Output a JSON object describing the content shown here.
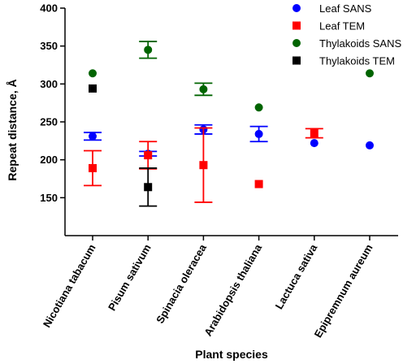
{
  "chart_data": {
    "type": "scatter",
    "title": "",
    "xlabel": "Plant species",
    "ylabel": "Repeat distance, Å",
    "ylim": [
      100,
      400
    ],
    "yticks": [
      150,
      200,
      250,
      300,
      350,
      400
    ],
    "categories": [
      "Nicotiana tabacum",
      "Pisum sativum",
      "Spinacia oleracea",
      "Arabidopsis thaliana",
      "Lactuca sativa",
      "Epipremnum aureum"
    ],
    "legend_position": "top-right",
    "grid": false,
    "series": [
      {
        "name": "Leaf SANS",
        "color": "#0000ff",
        "marker": "circle",
        "values": [
          231,
          208,
          240,
          234,
          222,
          219
        ],
        "error": [
          5,
          3,
          6,
          10,
          null,
          null
        ]
      },
      {
        "name": "Leaf TEM",
        "color": "#ff0000",
        "marker": "square",
        "values": [
          189,
          206,
          193,
          168,
          235,
          null
        ],
        "error": [
          23,
          18,
          49,
          null,
          6,
          null
        ]
      },
      {
        "name": "Thylakoids SANS",
        "color": "#006400",
        "marker": "circle",
        "values": [
          314,
          345,
          293,
          269,
          null,
          314
        ],
        "error": [
          null,
          11,
          8,
          null,
          null,
          null
        ]
      },
      {
        "name": "Thylakoids TEM",
        "color": "#000000",
        "marker": "square",
        "values": [
          294,
          164,
          null,
          null,
          null,
          null
        ],
        "error": [
          null,
          25,
          null,
          null,
          null,
          null
        ]
      }
    ]
  }
}
